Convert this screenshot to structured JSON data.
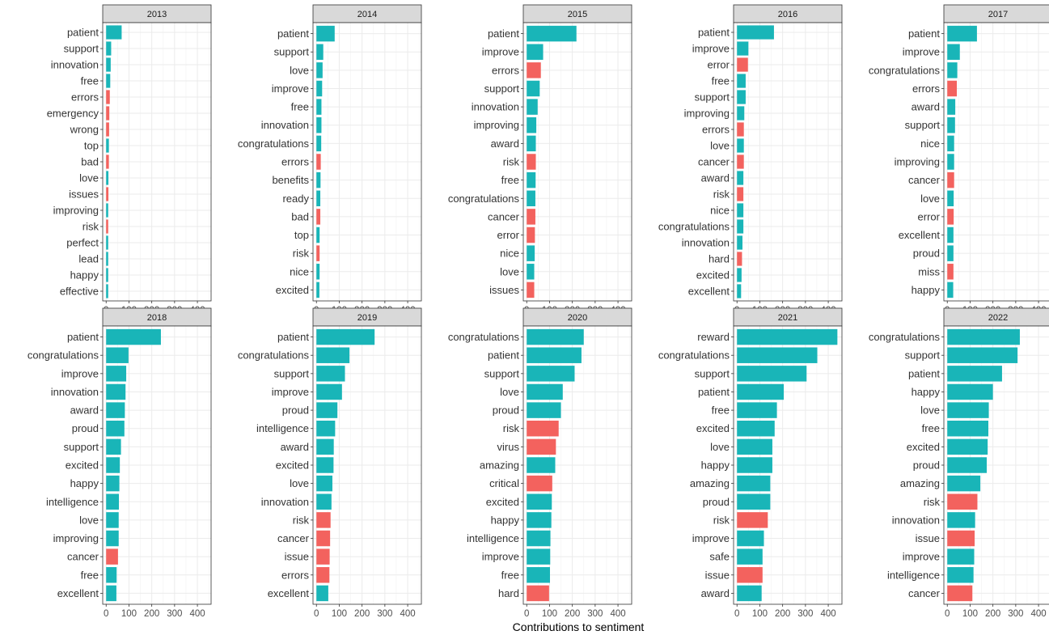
{
  "colors": {
    "positive": "#19B5B8",
    "negative": "#F3625E",
    "strip_fill": "#D9D9D9",
    "grid": "#EBEBEB",
    "panel_border": "#333333"
  },
  "chart_data": {
    "type": "bar",
    "orientation": "horizontal",
    "facet_by": "year",
    "xlabel": "Contributions to sentiment",
    "ylabel": "",
    "xlim": [
      -15,
      460
    ],
    "x_ticks": [
      0,
      100,
      200,
      300,
      400
    ],
    "grid": true,
    "legend": "none",
    "facets": [
      {
        "label": "2013",
        "bars": [
          {
            "word": "patient",
            "value": 68,
            "sentiment": "positive"
          },
          {
            "word": "support",
            "value": 22,
            "sentiment": "positive"
          },
          {
            "word": "innovation",
            "value": 20,
            "sentiment": "positive"
          },
          {
            "word": "free",
            "value": 18,
            "sentiment": "positive"
          },
          {
            "word": "errors",
            "value": 16,
            "sentiment": "negative"
          },
          {
            "word": "emergency",
            "value": 14,
            "sentiment": "negative"
          },
          {
            "word": "wrong",
            "value": 13,
            "sentiment": "negative"
          },
          {
            "word": "top",
            "value": 12,
            "sentiment": "positive"
          },
          {
            "word": "bad",
            "value": 12,
            "sentiment": "negative"
          },
          {
            "word": "love",
            "value": 10,
            "sentiment": "positive"
          },
          {
            "word": "issues",
            "value": 10,
            "sentiment": "negative"
          },
          {
            "word": "improving",
            "value": 9,
            "sentiment": "positive"
          },
          {
            "word": "risk",
            "value": 9,
            "sentiment": "negative"
          },
          {
            "word": "perfect",
            "value": 9,
            "sentiment": "positive"
          },
          {
            "word": "lead",
            "value": 9,
            "sentiment": "positive"
          },
          {
            "word": "happy",
            "value": 9,
            "sentiment": "positive"
          },
          {
            "word": "effective",
            "value": 9,
            "sentiment": "positive"
          }
        ]
      },
      {
        "label": "2014",
        "bars": [
          {
            "word": "patient",
            "value": 80,
            "sentiment": "positive"
          },
          {
            "word": "support",
            "value": 30,
            "sentiment": "positive"
          },
          {
            "word": "love",
            "value": 27,
            "sentiment": "positive"
          },
          {
            "word": "improve",
            "value": 25,
            "sentiment": "positive"
          },
          {
            "word": "free",
            "value": 22,
            "sentiment": "positive"
          },
          {
            "word": "innovation",
            "value": 22,
            "sentiment": "positive"
          },
          {
            "word": "congratulations",
            "value": 21,
            "sentiment": "positive"
          },
          {
            "word": "errors",
            "value": 19,
            "sentiment": "negative"
          },
          {
            "word": "benefits",
            "value": 18,
            "sentiment": "positive"
          },
          {
            "word": "ready",
            "value": 17,
            "sentiment": "positive"
          },
          {
            "word": "bad",
            "value": 17,
            "sentiment": "negative"
          },
          {
            "word": "top",
            "value": 14,
            "sentiment": "positive"
          },
          {
            "word": "risk",
            "value": 14,
            "sentiment": "negative"
          },
          {
            "word": "nice",
            "value": 14,
            "sentiment": "positive"
          },
          {
            "word": "excited",
            "value": 13,
            "sentiment": "positive"
          }
        ]
      },
      {
        "label": "2015",
        "bars": [
          {
            "word": "patient",
            "value": 218,
            "sentiment": "positive"
          },
          {
            "word": "improve",
            "value": 72,
            "sentiment": "positive"
          },
          {
            "word": "errors",
            "value": 62,
            "sentiment": "negative"
          },
          {
            "word": "support",
            "value": 57,
            "sentiment": "positive"
          },
          {
            "word": "innovation",
            "value": 48,
            "sentiment": "positive"
          },
          {
            "word": "improving",
            "value": 42,
            "sentiment": "positive"
          },
          {
            "word": "award",
            "value": 40,
            "sentiment": "positive"
          },
          {
            "word": "risk",
            "value": 40,
            "sentiment": "negative"
          },
          {
            "word": "free",
            "value": 39,
            "sentiment": "positive"
          },
          {
            "word": "congratulations",
            "value": 38,
            "sentiment": "positive"
          },
          {
            "word": "cancer",
            "value": 38,
            "sentiment": "negative"
          },
          {
            "word": "error",
            "value": 36,
            "sentiment": "negative"
          },
          {
            "word": "nice",
            "value": 35,
            "sentiment": "positive"
          },
          {
            "word": "love",
            "value": 33,
            "sentiment": "positive"
          },
          {
            "word": "issues",
            "value": 33,
            "sentiment": "negative"
          }
        ]
      },
      {
        "label": "2016",
        "bars": [
          {
            "word": "patient",
            "value": 162,
            "sentiment": "positive"
          },
          {
            "word": "improve",
            "value": 50,
            "sentiment": "positive"
          },
          {
            "word": "error",
            "value": 48,
            "sentiment": "negative"
          },
          {
            "word": "free",
            "value": 38,
            "sentiment": "positive"
          },
          {
            "word": "support",
            "value": 38,
            "sentiment": "positive"
          },
          {
            "word": "improving",
            "value": 32,
            "sentiment": "positive"
          },
          {
            "word": "errors",
            "value": 30,
            "sentiment": "negative"
          },
          {
            "word": "love",
            "value": 30,
            "sentiment": "positive"
          },
          {
            "word": "cancer",
            "value": 30,
            "sentiment": "negative"
          },
          {
            "word": "award",
            "value": 28,
            "sentiment": "positive"
          },
          {
            "word": "risk",
            "value": 28,
            "sentiment": "negative"
          },
          {
            "word": "nice",
            "value": 28,
            "sentiment": "positive"
          },
          {
            "word": "congratulations",
            "value": 28,
            "sentiment": "positive"
          },
          {
            "word": "innovation",
            "value": 24,
            "sentiment": "positive"
          },
          {
            "word": "hard",
            "value": 22,
            "sentiment": "negative"
          },
          {
            "word": "excited",
            "value": 20,
            "sentiment": "positive"
          },
          {
            "word": "excellent",
            "value": 18,
            "sentiment": "positive"
          }
        ]
      },
      {
        "label": "2017",
        "bars": [
          {
            "word": "patient",
            "value": 130,
            "sentiment": "positive"
          },
          {
            "word": "improve",
            "value": 55,
            "sentiment": "positive"
          },
          {
            "word": "congratulations",
            "value": 44,
            "sentiment": "positive"
          },
          {
            "word": "errors",
            "value": 42,
            "sentiment": "negative"
          },
          {
            "word": "award",
            "value": 35,
            "sentiment": "positive"
          },
          {
            "word": "support",
            "value": 34,
            "sentiment": "positive"
          },
          {
            "word": "nice",
            "value": 30,
            "sentiment": "positive"
          },
          {
            "word": "improving",
            "value": 30,
            "sentiment": "positive"
          },
          {
            "word": "cancer",
            "value": 30,
            "sentiment": "negative"
          },
          {
            "word": "love",
            "value": 28,
            "sentiment": "positive"
          },
          {
            "word": "error",
            "value": 28,
            "sentiment": "negative"
          },
          {
            "word": "excellent",
            "value": 27,
            "sentiment": "positive"
          },
          {
            "word": "proud",
            "value": 27,
            "sentiment": "positive"
          },
          {
            "word": "miss",
            "value": 27,
            "sentiment": "negative"
          },
          {
            "word": "happy",
            "value": 26,
            "sentiment": "positive"
          }
        ]
      },
      {
        "label": "2018",
        "bars": [
          {
            "word": "patient",
            "value": 240,
            "sentiment": "positive"
          },
          {
            "word": "congratulations",
            "value": 98,
            "sentiment": "positive"
          },
          {
            "word": "improve",
            "value": 88,
            "sentiment": "positive"
          },
          {
            "word": "innovation",
            "value": 85,
            "sentiment": "positive"
          },
          {
            "word": "award",
            "value": 82,
            "sentiment": "positive"
          },
          {
            "word": "proud",
            "value": 80,
            "sentiment": "positive"
          },
          {
            "word": "support",
            "value": 65,
            "sentiment": "positive"
          },
          {
            "word": "excited",
            "value": 60,
            "sentiment": "positive"
          },
          {
            "word": "happy",
            "value": 58,
            "sentiment": "positive"
          },
          {
            "word": "intelligence",
            "value": 56,
            "sentiment": "positive"
          },
          {
            "word": "love",
            "value": 55,
            "sentiment": "positive"
          },
          {
            "word": "improving",
            "value": 55,
            "sentiment": "positive"
          },
          {
            "word": "cancer",
            "value": 52,
            "sentiment": "negative"
          },
          {
            "word": "free",
            "value": 46,
            "sentiment": "positive"
          },
          {
            "word": "excellent",
            "value": 45,
            "sentiment": "positive"
          }
        ]
      },
      {
        "label": "2019",
        "bars": [
          {
            "word": "patient",
            "value": 255,
            "sentiment": "positive"
          },
          {
            "word": "congratulations",
            "value": 145,
            "sentiment": "positive"
          },
          {
            "word": "support",
            "value": 125,
            "sentiment": "positive"
          },
          {
            "word": "improve",
            "value": 112,
            "sentiment": "positive"
          },
          {
            "word": "proud",
            "value": 92,
            "sentiment": "positive"
          },
          {
            "word": "intelligence",
            "value": 82,
            "sentiment": "positive"
          },
          {
            "word": "award",
            "value": 76,
            "sentiment": "positive"
          },
          {
            "word": "excited",
            "value": 75,
            "sentiment": "positive"
          },
          {
            "word": "love",
            "value": 70,
            "sentiment": "positive"
          },
          {
            "word": "innovation",
            "value": 66,
            "sentiment": "positive"
          },
          {
            "word": "risk",
            "value": 62,
            "sentiment": "negative"
          },
          {
            "word": "cancer",
            "value": 60,
            "sentiment": "negative"
          },
          {
            "word": "issue",
            "value": 58,
            "sentiment": "negative"
          },
          {
            "word": "errors",
            "value": 57,
            "sentiment": "negative"
          },
          {
            "word": "excellent",
            "value": 52,
            "sentiment": "positive"
          }
        ]
      },
      {
        "label": "2020",
        "bars": [
          {
            "word": "congratulations",
            "value": 250,
            "sentiment": "positive"
          },
          {
            "word": "patient",
            "value": 240,
            "sentiment": "positive"
          },
          {
            "word": "support",
            "value": 210,
            "sentiment": "positive"
          },
          {
            "word": "love",
            "value": 158,
            "sentiment": "positive"
          },
          {
            "word": "proud",
            "value": 150,
            "sentiment": "positive"
          },
          {
            "word": "risk",
            "value": 140,
            "sentiment": "negative"
          },
          {
            "word": "virus",
            "value": 128,
            "sentiment": "negative"
          },
          {
            "word": "amazing",
            "value": 125,
            "sentiment": "positive"
          },
          {
            "word": "critical",
            "value": 112,
            "sentiment": "negative"
          },
          {
            "word": "excited",
            "value": 110,
            "sentiment": "positive"
          },
          {
            "word": "happy",
            "value": 108,
            "sentiment": "positive"
          },
          {
            "word": "intelligence",
            "value": 104,
            "sentiment": "positive"
          },
          {
            "word": "improve",
            "value": 103,
            "sentiment": "positive"
          },
          {
            "word": "free",
            "value": 102,
            "sentiment": "positive"
          },
          {
            "word": "hard",
            "value": 98,
            "sentiment": "negative"
          }
        ]
      },
      {
        "label": "2021",
        "bars": [
          {
            "word": "reward",
            "value": 440,
            "sentiment": "positive"
          },
          {
            "word": "congratulations",
            "value": 352,
            "sentiment": "positive"
          },
          {
            "word": "support",
            "value": 305,
            "sentiment": "positive"
          },
          {
            "word": "patient",
            "value": 205,
            "sentiment": "positive"
          },
          {
            "word": "free",
            "value": 175,
            "sentiment": "positive"
          },
          {
            "word": "excited",
            "value": 165,
            "sentiment": "positive"
          },
          {
            "word": "love",
            "value": 155,
            "sentiment": "positive"
          },
          {
            "word": "happy",
            "value": 155,
            "sentiment": "positive"
          },
          {
            "word": "amazing",
            "value": 146,
            "sentiment": "positive"
          },
          {
            "word": "proud",
            "value": 146,
            "sentiment": "positive"
          },
          {
            "word": "risk",
            "value": 135,
            "sentiment": "negative"
          },
          {
            "word": "improve",
            "value": 118,
            "sentiment": "positive"
          },
          {
            "word": "safe",
            "value": 112,
            "sentiment": "positive"
          },
          {
            "word": "issue",
            "value": 112,
            "sentiment": "negative"
          },
          {
            "word": "award",
            "value": 108,
            "sentiment": "positive"
          }
        ]
      },
      {
        "label": "2022",
        "bars": [
          {
            "word": "congratulations",
            "value": 318,
            "sentiment": "positive"
          },
          {
            "word": "support",
            "value": 308,
            "sentiment": "positive"
          },
          {
            "word": "patient",
            "value": 240,
            "sentiment": "positive"
          },
          {
            "word": "happy",
            "value": 200,
            "sentiment": "positive"
          },
          {
            "word": "love",
            "value": 182,
            "sentiment": "positive"
          },
          {
            "word": "free",
            "value": 180,
            "sentiment": "positive"
          },
          {
            "word": "excited",
            "value": 177,
            "sentiment": "positive"
          },
          {
            "word": "proud",
            "value": 173,
            "sentiment": "positive"
          },
          {
            "word": "amazing",
            "value": 145,
            "sentiment": "positive"
          },
          {
            "word": "risk",
            "value": 132,
            "sentiment": "negative"
          },
          {
            "word": "innovation",
            "value": 122,
            "sentiment": "positive"
          },
          {
            "word": "issue",
            "value": 120,
            "sentiment": "negative"
          },
          {
            "word": "improve",
            "value": 118,
            "sentiment": "positive"
          },
          {
            "word": "intelligence",
            "value": 115,
            "sentiment": "positive"
          },
          {
            "word": "cancer",
            "value": 110,
            "sentiment": "negative"
          }
        ]
      }
    ]
  }
}
